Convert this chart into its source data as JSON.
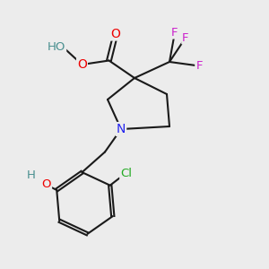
{
  "background_color": "#ececec",
  "bond_color": "#1a1a1a",
  "atom_colors": {
    "O": "#ee0000",
    "N": "#2222ee",
    "F": "#cc22cc",
    "Cl": "#22aa22",
    "HO_carboxyl": "#4a9090",
    "HO_phenol": "#4a9090",
    "O_red": "#ee0000"
  },
  "font_size_atoms": 9.5,
  "fig_size": [
    3.0,
    3.0
  ],
  "dpi": 100
}
